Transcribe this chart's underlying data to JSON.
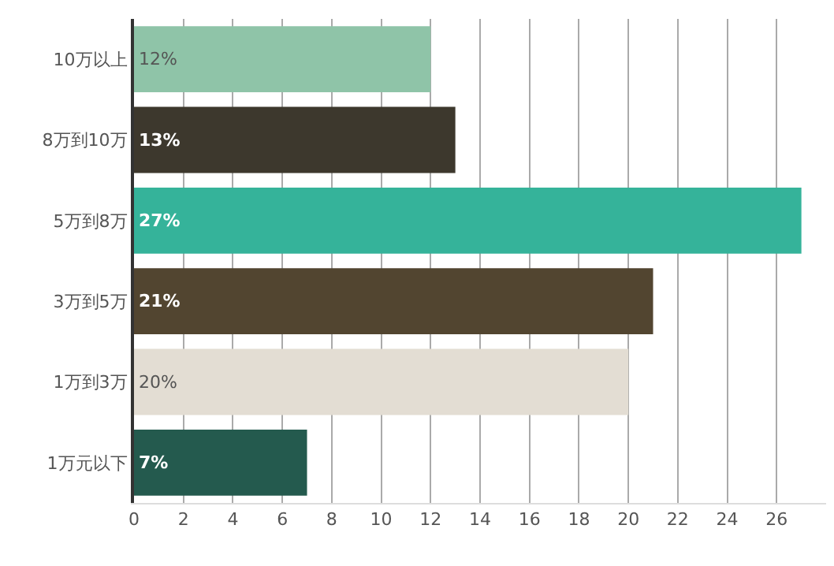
{
  "chart_data": {
    "type": "bar",
    "orientation": "horizontal",
    "categories": [
      "10万以上",
      "8万到10万",
      "5万到8万",
      "3万到5万",
      "1万到3万",
      "1万元以下"
    ],
    "values": [
      12,
      13,
      27,
      21,
      20,
      7
    ],
    "value_labels": [
      "12%",
      "13%",
      "27%",
      "21%",
      "20%",
      "7%"
    ],
    "colors": [
      "#8fc4a8",
      "#3d382d",
      "#35b39a",
      "#524530",
      "#e3ddd3",
      "#245a4e"
    ],
    "xlim": [
      0,
      28
    ],
    "xticks": [
      0,
      2,
      4,
      6,
      8,
      10,
      12,
      14,
      16,
      18,
      20,
      22,
      24,
      26
    ],
    "grid": "x",
    "legend": false
  }
}
